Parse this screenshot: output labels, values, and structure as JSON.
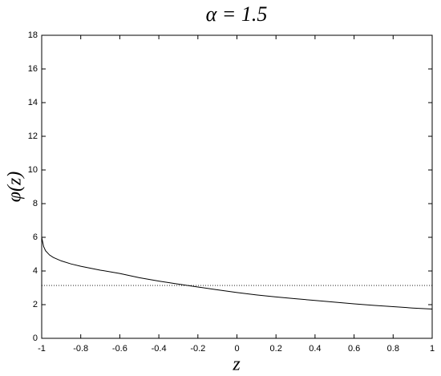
{
  "chart_data": {
    "type": "line",
    "title": "α = 1.5",
    "x_label": "z",
    "y_label": "φ(z)",
    "x": [
      -1,
      -0.99,
      -0.98,
      -0.96,
      -0.94,
      -0.9,
      -0.85,
      -0.8,
      -0.7,
      -0.6,
      -0.5,
      -0.4,
      -0.3,
      -0.2,
      -0.1,
      0,
      0.1,
      0.2,
      0.3,
      0.4,
      0.5,
      0.6,
      0.7,
      0.8,
      0.9,
      1
    ],
    "series": [
      {
        "color": "#000000",
        "values": [
          6.0,
          5.45,
          5.2,
          4.95,
          4.8,
          4.6,
          4.42,
          4.28,
          4.05,
          3.85,
          3.6,
          3.4,
          3.22,
          3.05,
          2.88,
          2.72,
          2.58,
          2.46,
          2.35,
          2.25,
          2.15,
          2.05,
          1.96,
          1.88,
          1.8,
          1.74
        ]
      }
    ],
    "reference_line": 3.14,
    "xlim": [
      -1,
      1
    ],
    "xticks": [
      -1,
      -0.8,
      -0.6,
      -0.4,
      -0.2,
      0,
      0.2,
      0.4,
      0.6,
      0.8,
      1
    ],
    "ylim": [
      0,
      18
    ],
    "yticks": [
      0,
      2,
      4,
      6,
      8,
      10,
      12,
      14,
      16,
      18
    ]
  }
}
